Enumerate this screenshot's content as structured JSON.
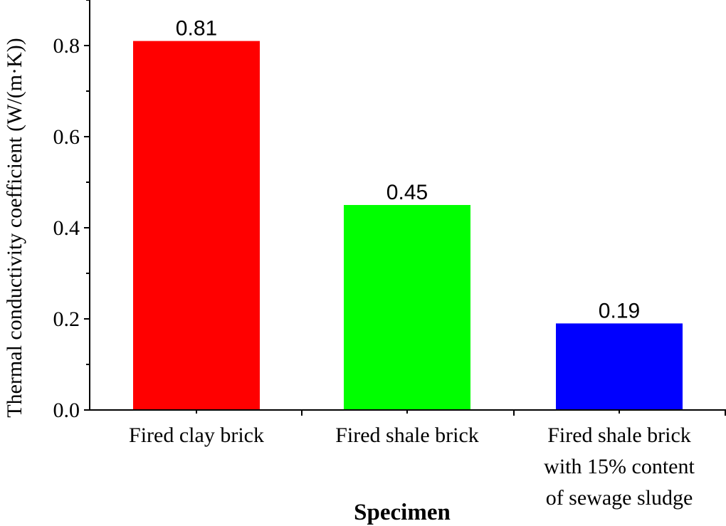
{
  "chart_data": {
    "type": "bar",
    "categories": [
      [
        "Fired clay brick"
      ],
      [
        "Fired shale brick"
      ],
      [
        "Fired shale brick",
        "with 15% content",
        "of sewage sludge"
      ]
    ],
    "values": [
      0.81,
      0.45,
      0.19
    ],
    "value_labels": [
      "0.81",
      "0.45",
      "0.19"
    ],
    "colors": [
      "#ff0000",
      "#00ff00",
      "#0000ff"
    ],
    "xlabel": "Specimen",
    "ylabel": "Thermal conductivity coefficient (W/(m·K))",
    "ylim": [
      0,
      0.9
    ],
    "yticks": [
      0.0,
      0.2,
      0.4,
      0.6,
      0.8
    ],
    "ytick_labels": [
      "0.0",
      "0.2",
      "0.4",
      "0.6",
      "0.8"
    ],
    "grid": false,
    "legend": "none"
  }
}
